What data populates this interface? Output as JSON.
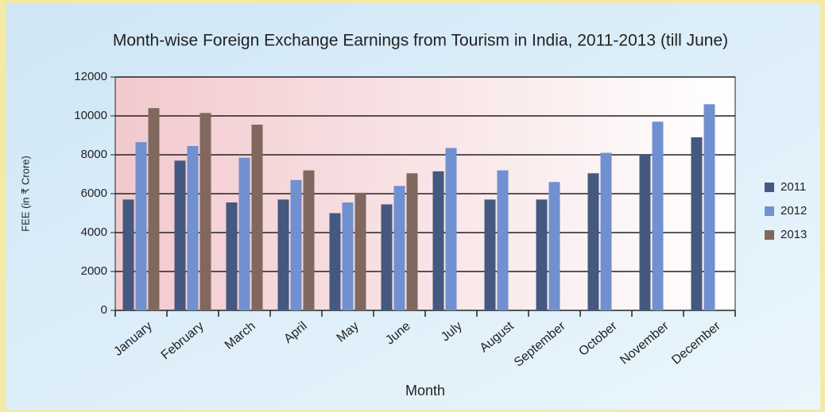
{
  "chart_data": {
    "type": "bar",
    "title": "Month-wise Foreign Exchange Earnings from Tourism in India, 2011-2013 (till June)",
    "x_label": "Month",
    "y_label": "FEE (in ₹ Crore)",
    "categories": [
      "January",
      "February",
      "March",
      "April",
      "May",
      "June",
      "July",
      "August",
      "September",
      "October",
      "November",
      "December"
    ],
    "series": [
      {
        "name": "2011",
        "color": "#45587f",
        "values": [
          5700,
          7700,
          5550,
          5700,
          5000,
          5450,
          7150,
          5700,
          5700,
          7050,
          8000,
          8900
        ]
      },
      {
        "name": "2012",
        "color": "#7090d0",
        "values": [
          8650,
          8450,
          7850,
          6700,
          5550,
          6400,
          8350,
          7200,
          6600,
          8100,
          9700,
          10600
        ]
      },
      {
        "name": "2013",
        "color": "#80685f",
        "values": [
          10400,
          10150,
          9550,
          7200,
          6050,
          7050,
          null,
          null,
          null,
          null,
          null,
          null
        ]
      }
    ],
    "ylim": [
      0,
      12000
    ],
    "yticks": [
      0,
      2000,
      4000,
      6000,
      8000,
      10000,
      12000
    ],
    "grid": true,
    "legend": "right"
  }
}
